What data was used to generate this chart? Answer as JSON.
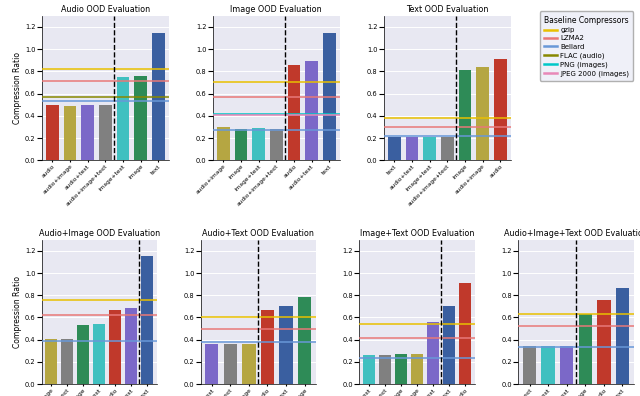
{
  "subplots": [
    {
      "title": "Audio OOD Evaluation",
      "categories": [
        "audio",
        "audio+image",
        "audio+text",
        "audio+image+text",
        "image+text",
        "image",
        "text"
      ],
      "values": [
        0.5,
        0.49,
        0.5,
        0.5,
        0.75,
        0.76,
        1.15
      ],
      "colors": [
        "#c0392b",
        "#b5a642",
        "#7b68c8",
        "#808080",
        "#40c0c0",
        "#2e8b57",
        "#3a5fa0"
      ],
      "dashed_line_idx": 4,
      "hlines": {
        "gzip": 0.82,
        "lzma2": 0.71,
        "bellard": 0.535,
        "flac": 0.565,
        "png": null,
        "jpeg2000": null
      }
    },
    {
      "title": "Image OOD Evaluation",
      "categories": [
        "audio+image",
        "image",
        "image+text",
        "audio+image+text",
        "audio",
        "audio+text",
        "text"
      ],
      "values": [
        0.295,
        0.285,
        0.29,
        0.285,
        0.86,
        0.89,
        1.15
      ],
      "colors": [
        "#b5a642",
        "#2e8b57",
        "#40c0c0",
        "#808080",
        "#c0392b",
        "#7b68c8",
        "#3a5fa0"
      ],
      "dashed_line_idx": 4,
      "hlines": {
        "gzip": 0.7,
        "lzma2": 0.57,
        "bellard": 0.27,
        "flac": null,
        "png": 0.42,
        "jpeg2000": 0.405
      }
    },
    {
      "title": "Text OOD Evaluation",
      "categories": [
        "text",
        "audio+text",
        "image+text",
        "audio+image+text",
        "image",
        "audio+image",
        "audio"
      ],
      "values": [
        0.205,
        0.205,
        0.205,
        0.21,
        0.81,
        0.835,
        0.91
      ],
      "colors": [
        "#3a5fa0",
        "#7b68c8",
        "#40c0c0",
        "#808080",
        "#2e8b57",
        "#b5a642",
        "#c0392b"
      ],
      "dashed_line_idx": 4,
      "hlines": {
        "gzip": 0.38,
        "lzma2": 0.295,
        "bellard": 0.215,
        "flac": null,
        "png": null,
        "jpeg2000": null
      }
    },
    {
      "title": "Audio+Image OOD Evaluation",
      "categories": [
        "audio+image",
        "audio+image+text",
        "image",
        "image+text",
        "audio",
        "audio+text",
        "text"
      ],
      "values": [
        0.405,
        0.405,
        0.535,
        0.545,
        0.665,
        0.685,
        1.155
      ],
      "colors": [
        "#b5a642",
        "#808080",
        "#2e8b57",
        "#40c0c0",
        "#c0392b",
        "#7b68c8",
        "#3a5fa0"
      ],
      "dashed_line_idx": 6,
      "hlines": {
        "gzip": 0.755,
        "lzma2": 0.625,
        "bellard": 0.39,
        "flac": null,
        "png": null,
        "jpeg2000": null
      }
    },
    {
      "title": "Audio+Text OOD Evaluation",
      "categories": [
        "audio+text",
        "audio+image+text",
        "audio+image",
        "audio",
        "text",
        "image"
      ],
      "values": [
        0.365,
        0.365,
        0.365,
        0.665,
        0.705,
        0.78
      ],
      "colors": [
        "#7b68c8",
        "#808080",
        "#b5a642",
        "#c0392b",
        "#3a5fa0",
        "#2e8b57"
      ],
      "dashed_line_idx": 3,
      "hlines": {
        "gzip": 0.605,
        "lzma2": 0.495,
        "bellard": 0.375,
        "flac": null,
        "png": null,
        "jpeg2000": null
      }
    },
    {
      "title": "Image+Text OOD Evaluation",
      "categories": [
        "image+text",
        "audio+image+text",
        "image",
        "audio+image",
        "audio+text",
        "text",
        "audio"
      ],
      "values": [
        0.265,
        0.265,
        0.27,
        0.275,
        0.555,
        0.705,
        0.91
      ],
      "colors": [
        "#40c0c0",
        "#808080",
        "#2e8b57",
        "#b5a642",
        "#7b68c8",
        "#3a5fa0",
        "#c0392b"
      ],
      "dashed_line_idx": 5,
      "hlines": {
        "gzip": 0.545,
        "lzma2": 0.415,
        "bellard": 0.235,
        "flac": null,
        "png": null,
        "jpeg2000": null
      }
    },
    {
      "title": "Audio+Image+Text OOD Evaluation",
      "categories": [
        "audio+image+text",
        "image+text",
        "audio+text",
        "image",
        "audio",
        "text"
      ],
      "values": [
        0.345,
        0.345,
        0.345,
        0.635,
        0.755,
        0.865
      ],
      "colors": [
        "#808080",
        "#40c0c0",
        "#7b68c8",
        "#2e8b57",
        "#c0392b",
        "#3a5fa0"
      ],
      "dashed_line_idx": 3,
      "hlines": {
        "gzip": 0.635,
        "lzma2": 0.52,
        "bellard": 0.33,
        "flac": null,
        "png": null,
        "jpeg2000": null
      }
    }
  ],
  "baseline_colors": {
    "gzip": "#e8c000",
    "lzma2": "#e87878",
    "bellard": "#6898d8",
    "flac": "#888800",
    "png": "#00c8c8",
    "jpeg2000": "#e888b8"
  },
  "legend_labels": {
    "gzip": "gzip",
    "lzma2": "LZMA2",
    "bellard": "Bellard",
    "flac": "FLAC (audio)",
    "png": "PNG (images)",
    "jpeg2000": "JPEG 2000 (images)"
  },
  "ylabel": "Compression Ratio",
  "ylim": [
    0.0,
    1.3
  ],
  "background_color": "#e8e8f2"
}
